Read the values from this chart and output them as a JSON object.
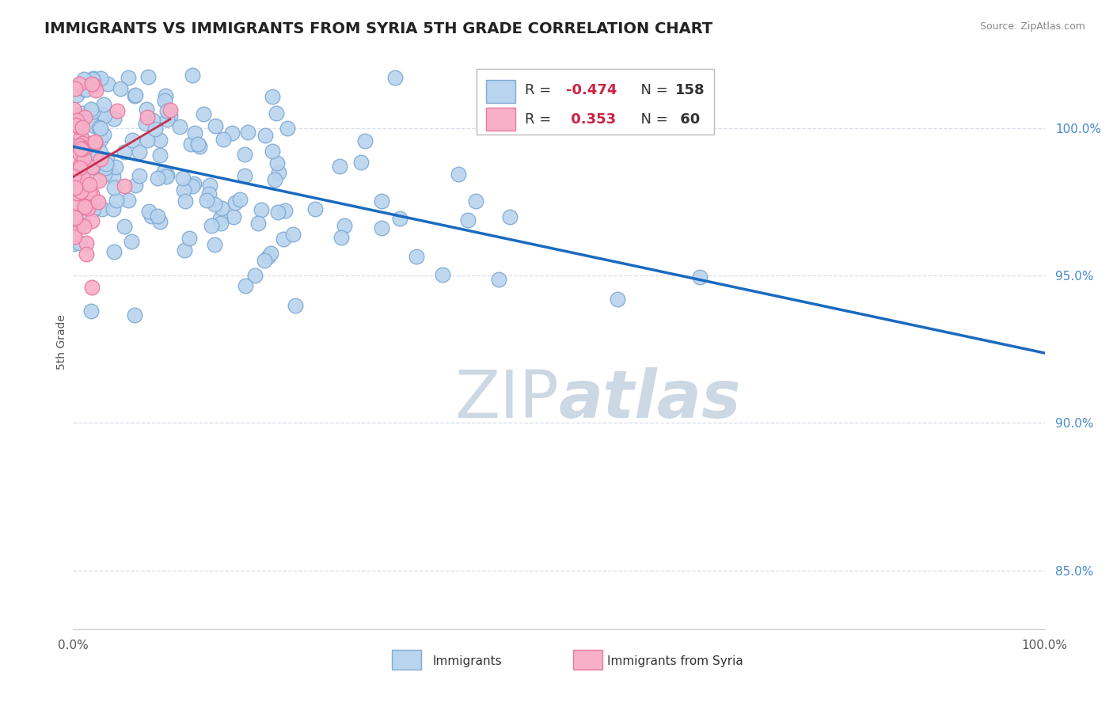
{
  "title": "IMMIGRANTS VS IMMIGRANTS FROM SYRIA 5TH GRADE CORRELATION CHART",
  "source_text": "Source: ZipAtlas.com",
  "ylabel": "5th Grade",
  "xlim": [
    0.0,
    100.0
  ],
  "ylim": [
    83.0,
    102.5
  ],
  "ytick_values": [
    85.0,
    90.0,
    95.0,
    100.0
  ],
  "blue_R": -0.474,
  "blue_N": 158,
  "pink_R": 0.353,
  "pink_N": 60,
  "blue_fill": "#b8d4ee",
  "blue_edge": "#80aad4",
  "pink_fill": "#f8b0c8",
  "pink_edge": "#e878a0",
  "trend_blue": "#1a6abf",
  "trend_pink": "#c83050",
  "grid_color": "#d8dde8",
  "bg_color": "#ffffff",
  "watermark_color": "#ccd8e4",
  "title_color": "#222222",
  "legend_label_blue": "Immigrants",
  "legend_label_pink": "Immigrants from Syria",
  "seed": 99
}
